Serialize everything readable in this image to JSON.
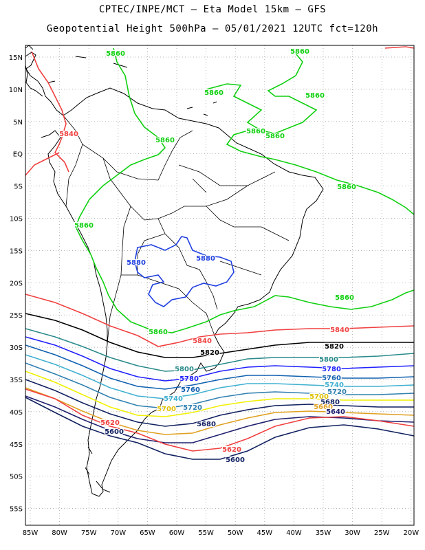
{
  "header": {
    "line1": "CPTEC/INPE/MCT –  Eta Model 15km – GFS",
    "line2": "Geopotential Height 500hPa – 05/01/2021 12UTC fct=120h"
  },
  "axes": {
    "lat_labels": [
      "15N",
      "10N",
      "5N",
      "EQ",
      "5S",
      "10S",
      "15S",
      "20S",
      "25S",
      "30S",
      "35S",
      "40S",
      "45S",
      "50S",
      "55S"
    ],
    "lon_labels": [
      "85W",
      "80W",
      "75W",
      "70W",
      "65W",
      "60W",
      "55W",
      "50W",
      "45W",
      "40W",
      "35W",
      "30W",
      "25W",
      "20W"
    ]
  },
  "colors": {
    "c5880": "#2040e0",
    "c5860": "#10d010",
    "c5840": "#f04040",
    "c5820": "#000000",
    "c5800": "#2a8a8a",
    "c5780": "#2020ff",
    "c5760": "#1060b0",
    "c5740": "#40b0d0",
    "c5720": "#3080b0",
    "c5700": "#f0f000",
    "c5680": "#102060",
    "c5660": "#e0a020",
    "c5640": "#202070",
    "c5620": "#f04040",
    "c5600": "#102060",
    "grid": "#9a9a9a",
    "land": "#000000"
  },
  "contour_labels": [
    {
      "id": "l1",
      "text": "5860",
      "color": "#10d010"
    },
    {
      "id": "l2",
      "text": "5860",
      "color": "#10d010"
    },
    {
      "id": "l3",
      "text": "5860",
      "color": "#10d010"
    },
    {
      "id": "l4",
      "text": "5860",
      "color": "#10d010"
    },
    {
      "id": "l5",
      "text": "5860",
      "color": "#10d010"
    },
    {
      "id": "l6",
      "text": "5860",
      "color": "#10d010"
    },
    {
      "id": "l7",
      "text": "5860",
      "color": "#10d010"
    },
    {
      "id": "l8",
      "text": "5860",
      "color": "#10d010"
    },
    {
      "id": "l9",
      "text": "5860",
      "color": "#10d010"
    },
    {
      "id": "l10",
      "text": "5860",
      "color": "#10d010"
    },
    {
      "id": "l11",
      "text": "5860",
      "color": "#10d010"
    },
    {
      "id": "l12",
      "text": "5840",
      "color": "#f04040"
    },
    {
      "id": "l13",
      "text": "5880",
      "color": "#2040e0"
    },
    {
      "id": "l14",
      "text": "5880",
      "color": "#2040e0"
    },
    {
      "id": "l15",
      "text": "5840",
      "color": "#f04040"
    },
    {
      "id": "l16",
      "text": "5840",
      "color": "#f04040"
    },
    {
      "id": "l17",
      "text": "5820",
      "color": "#000000"
    },
    {
      "id": "l18",
      "text": "5820",
      "color": "#000000"
    },
    {
      "id": "l19",
      "text": "5800",
      "color": "#2a8a8a"
    },
    {
      "id": "l20",
      "text": "5800",
      "color": "#2a8a8a"
    },
    {
      "id": "l21",
      "text": "5780",
      "color": "#2020ff"
    },
    {
      "id": "l22",
      "text": "5780",
      "color": "#2020ff"
    },
    {
      "id": "l23",
      "text": "5760",
      "color": "#1060b0"
    },
    {
      "id": "l24",
      "text": "5760",
      "color": "#1060b0"
    },
    {
      "id": "l25",
      "text": "5740",
      "color": "#40b0d0"
    },
    {
      "id": "l26",
      "text": "5740",
      "color": "#40b0d0"
    },
    {
      "id": "l27",
      "text": "5720",
      "color": "#3080b0"
    },
    {
      "id": "l28",
      "text": "5720",
      "color": "#3080b0"
    },
    {
      "id": "l29",
      "text": "5700",
      "color": "#e0c000"
    },
    {
      "id": "l30",
      "text": "5700",
      "color": "#e0c000"
    },
    {
      "id": "l31",
      "text": "5680",
      "color": "#102060"
    },
    {
      "id": "l32",
      "text": "5680",
      "color": "#102060"
    },
    {
      "id": "l33",
      "text": "5660",
      "color": "#e0a020"
    },
    {
      "id": "l34",
      "text": "5640",
      "color": "#202070"
    },
    {
      "id": "l35",
      "text": "5620",
      "color": "#f04040"
    },
    {
      "id": "l36",
      "text": "5620",
      "color": "#f04040"
    },
    {
      "id": "l37",
      "text": "5600",
      "color": "#102060"
    },
    {
      "id": "l38",
      "text": "5600",
      "color": "#102060"
    }
  ]
}
